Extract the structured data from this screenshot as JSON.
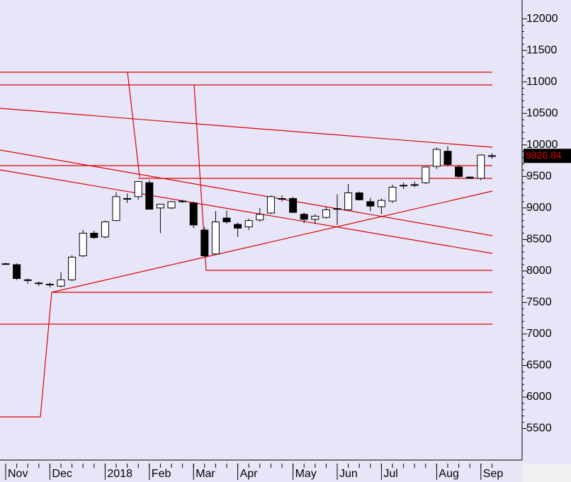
{
  "chart_data": {
    "type": "candlestick",
    "categories": [
      "Nov",
      null,
      null,
      null,
      "Dec",
      null,
      null,
      null,
      null,
      "2018",
      null,
      null,
      null,
      "Feb",
      null,
      null,
      null,
      "Mar",
      null,
      null,
      null,
      "Apr",
      null,
      null,
      null,
      null,
      "May",
      null,
      null,
      null,
      "Jun",
      null,
      null,
      null,
      "Jul",
      null,
      null,
      null,
      null,
      "Aug",
      null,
      null,
      null,
      "Sep",
      null
    ],
    "open": [
      8115,
      8100,
      7860,
      7810,
      7790,
      7760,
      7860,
      8240,
      8600,
      8540,
      8800,
      9150,
      9180,
      9400,
      9000,
      9000,
      9110,
      9080,
      8650,
      8270,
      8840,
      8740,
      8700,
      8810,
      8920,
      9150,
      9150,
      8900,
      8820,
      8850,
      8980,
      8970,
      9240,
      9100,
      9020,
      9110,
      9350,
      9360,
      9400,
      9660,
      9900,
      9650,
      9490,
      9470,
      9830
    ],
    "high": [
      8130,
      8120,
      7880,
      7830,
      7820,
      7980,
      8250,
      8650,
      8640,
      8800,
      9250,
      9230,
      9420,
      9440,
      9060,
      9110,
      9130,
      9100,
      8700,
      8950,
      8960,
      8770,
      8830,
      9000,
      9200,
      9200,
      9180,
      8930,
      8900,
      9020,
      9220,
      9380,
      9260,
      9160,
      9150,
      9370,
      9400,
      9420,
      9650,
      9960,
      9980,
      9680,
      9500,
      9850,
      9870
    ],
    "low": [
      8100,
      7860,
      7800,
      7760,
      7740,
      7740,
      7840,
      8220,
      8510,
      8520,
      8790,
      9080,
      9130,
      8980,
      8600,
      8980,
      9080,
      8680,
      8220,
      8260,
      8750,
      8540,
      8650,
      8780,
      8900,
      9100,
      8920,
      8760,
      8750,
      8830,
      8730,
      8960,
      9120,
      8950,
      8900,
      9080,
      9300,
      9330,
      9380,
      9620,
      9660,
      9480,
      9470,
      9440,
      9780
    ],
    "close": [
      8115,
      7880,
      7850,
      7800,
      7780,
      7860,
      8220,
      8600,
      8530,
      8780,
      9180,
      9150,
      9420,
      8980,
      9060,
      9100,
      9100,
      8730,
      8240,
      8780,
      8780,
      8680,
      8800,
      8900,
      9180,
      9150,
      8930,
      8820,
      8870,
      8970,
      8990,
      9240,
      9130,
      9030,
      9120,
      9330,
      9360,
      9370,
      9650,
      9930,
      9690,
      9500,
      9470,
      9840,
      9830
    ],
    "up_color": "#ffffff",
    "down_color": "#000000",
    "line_color": "#e00000",
    "ylim": [
      5000,
      12300
    ],
    "yticks": [
      5500,
      6000,
      6500,
      7000,
      7500,
      8000,
      8500,
      9000,
      9500,
      10000,
      10500,
      11000,
      11500,
      12000
    ],
    "last_value": 9826.84
  }
}
